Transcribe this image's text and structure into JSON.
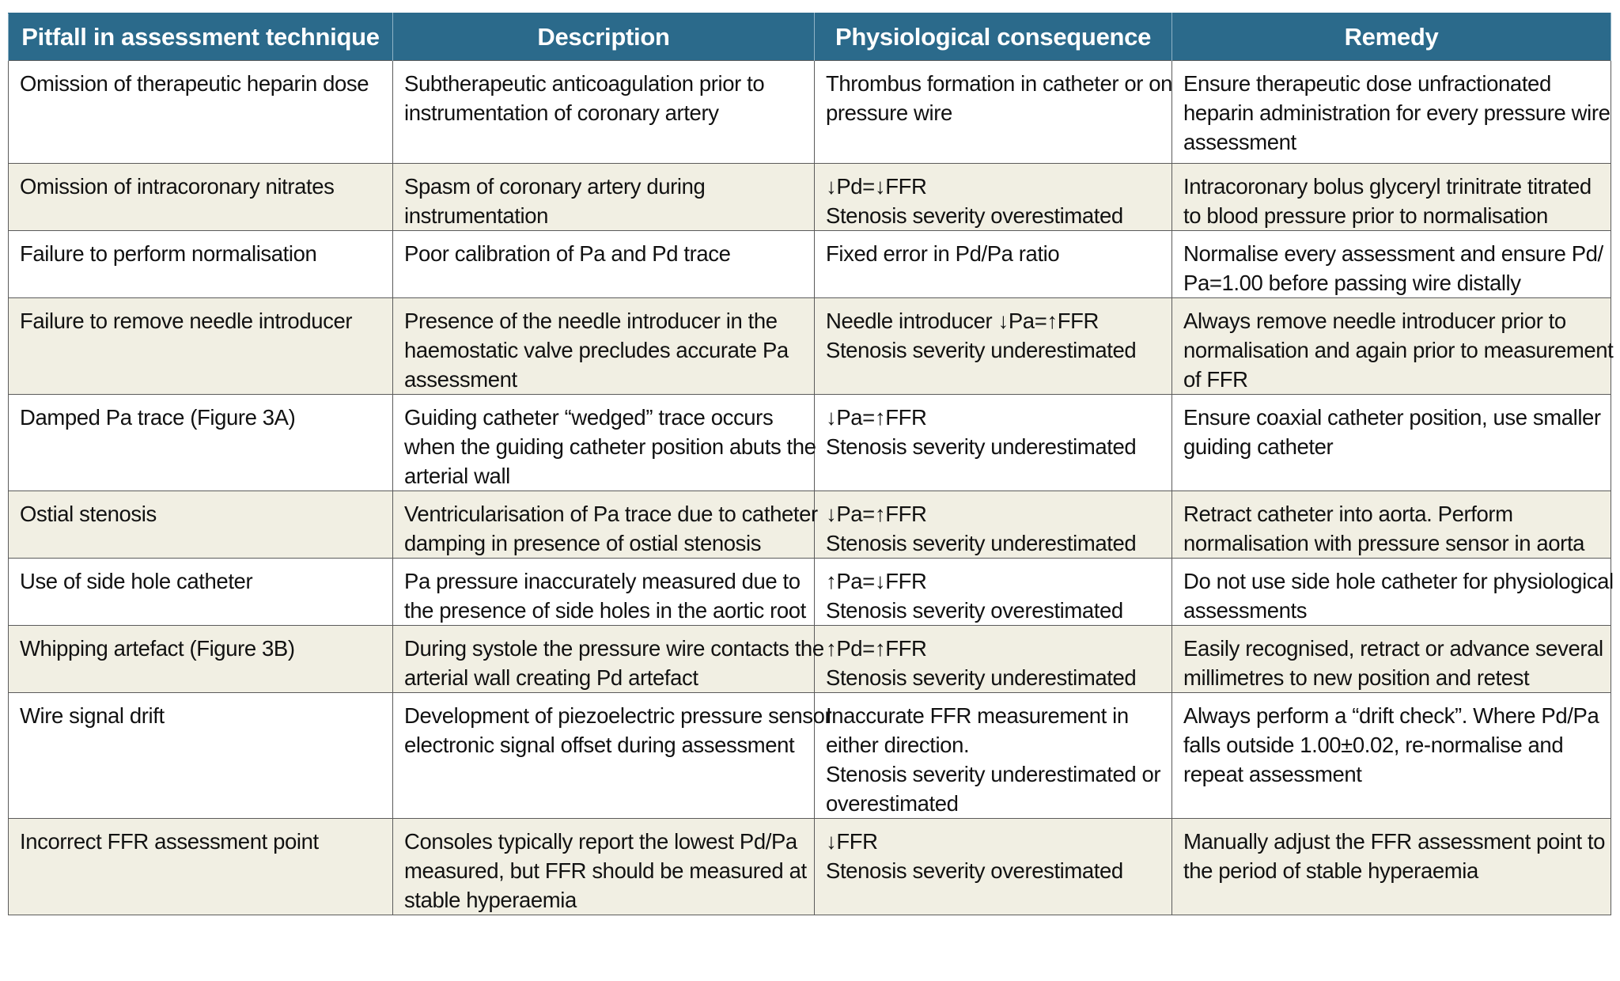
{
  "table": {
    "headers": [
      "Pitfall in assessment technique",
      "Description",
      "Physiological consequence",
      "Remedy"
    ],
    "rows": [
      {
        "pitfall": [
          "Omission of therapeutic heparin dose"
        ],
        "description": [
          "Subtherapeutic anticoagulation prior to",
          "instrumentation of coronary artery"
        ],
        "consequence": [
          "Thrombus formation in catheter or on",
          "pressure wire"
        ],
        "remedy": [
          "Ensure therapeutic dose unfractionated",
          "heparin administration for every pressure wire",
          "assessment"
        ]
      },
      {
        "pitfall": [
          "Omission of intracoronary nitrates"
        ],
        "description": [
          "Spasm of coronary artery during",
          "instrumentation"
        ],
        "consequence": [
          "↓Pd=↓FFR",
          "Stenosis severity overestimated"
        ],
        "remedy": [
          "Intracoronary bolus glyceryl trinitrate titrated",
          "to blood pressure prior to normalisation"
        ]
      },
      {
        "pitfall": [
          "Failure to perform normalisation"
        ],
        "description": [
          "Poor calibration of Pa and Pd trace"
        ],
        "consequence": [
          "Fixed error in Pd/Pa ratio"
        ],
        "remedy": [
          "Normalise every assessment and ensure Pd/",
          "Pa=1.00 before passing wire distally"
        ]
      },
      {
        "pitfall": [
          "Failure to remove needle introducer"
        ],
        "description": [
          "Presence of the needle introducer in the",
          "haemostatic valve precludes accurate Pa",
          "assessment"
        ],
        "consequence": [
          "Needle introducer ↓Pa=↑FFR",
          "Stenosis severity underestimated"
        ],
        "remedy": [
          "Always remove needle introducer prior to",
          "normalisation and again prior to measurement",
          "of FFR"
        ]
      },
      {
        "pitfall": [
          "Damped Pa trace (Figure 3A)"
        ],
        "description": [
          "Guiding catheter “wedged” trace occurs",
          "when the guiding catheter position abuts the",
          "arterial wall"
        ],
        "consequence": [
          "↓Pa=↑FFR",
          "Stenosis severity underestimated"
        ],
        "remedy": [
          "Ensure coaxial catheter position, use smaller",
          "guiding catheter"
        ]
      },
      {
        "pitfall": [
          "Ostial stenosis"
        ],
        "description": [
          "Ventricularisation of Pa trace due to catheter",
          "damping in presence of ostial stenosis"
        ],
        "consequence": [
          "↓Pa=↑FFR",
          "Stenosis severity underestimated"
        ],
        "remedy": [
          "Retract catheter into aorta. Perform",
          "normalisation with pressure sensor in aorta"
        ]
      },
      {
        "pitfall": [
          "Use of side hole catheter"
        ],
        "description": [
          "Pa pressure inaccurately measured due to",
          "the presence of side holes in the aortic root"
        ],
        "consequence": [
          "↑Pa=↓FFR",
          "Stenosis severity overestimated"
        ],
        "remedy": [
          "Do not use side hole catheter for physiological",
          "assessments"
        ]
      },
      {
        "pitfall": [
          "Whipping artefact (Figure 3B)"
        ],
        "description": [
          "During systole the pressure wire contacts the",
          "arterial wall creating Pd artefact"
        ],
        "consequence": [
          "↑Pd=↑FFR",
          "Stenosis severity underestimated"
        ],
        "remedy": [
          "Easily recognised, retract or advance several",
          "millimetres to new position and retest"
        ]
      },
      {
        "pitfall": [
          "Wire signal drift"
        ],
        "description": [
          "Development of piezoelectric pressure sensor",
          "electronic signal offset during assessment"
        ],
        "consequence": [
          "Inaccurate FFR measurement in",
          "either direction.",
          "Stenosis severity underestimated or",
          "overestimated"
        ],
        "remedy": [
          "Always perform a “drift check”. Where Pd/Pa",
          "falls outside 1.00±0.02, re-normalise and",
          "repeat assessment"
        ]
      },
      {
        "pitfall": [
          "Incorrect FFR assessment point"
        ],
        "description": [
          "Consoles typically report the lowest Pd/Pa",
          "measured, but FFR should be measured at",
          "stable hyperaemia"
        ],
        "consequence": [
          "↓FFR",
          "Stenosis severity overestimated"
        ],
        "remedy": [
          "Manually adjust the FFR assessment point to",
          "the period of stable hyperaemia"
        ]
      }
    ]
  }
}
